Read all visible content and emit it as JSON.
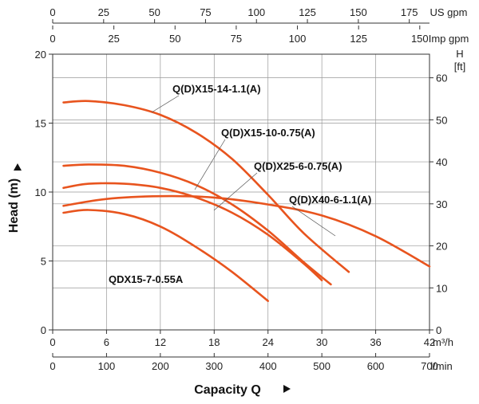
{
  "chart_data": {
    "type": "line",
    "title": "",
    "xlabel": "Capacity Q",
    "ylabel": "Head (m)",
    "xlim": [
      0,
      42
    ],
    "ylim": [
      0,
      20
    ],
    "grid": true,
    "x_unit": "m³/h",
    "x_ticks": [
      0,
      6,
      12,
      18,
      24,
      30,
      36,
      42
    ],
    "y_ticks": [
      0,
      5,
      10,
      15,
      20
    ],
    "secondary_axes": {
      "lpm": {
        "unit": "l/min",
        "ticks": [
          0,
          100,
          200,
          300,
          400,
          500,
          600,
          700
        ]
      },
      "us_gpm": {
        "unit": "US gpm",
        "ticks": [
          0,
          25,
          50,
          75,
          100,
          125,
          150,
          175
        ]
      },
      "imp_gpm": {
        "unit": "Imp gpm",
        "ticks": [
          0,
          25,
          50,
          75,
          100,
          125,
          150
        ]
      },
      "head_ft": {
        "unit_top": "H",
        "unit_bottom": "[ft]",
        "ticks": [
          0,
          10,
          20,
          30,
          40,
          50,
          60
        ]
      }
    },
    "curve_color": "#E8541E",
    "series": [
      {
        "name": "Q(D)X15-14-1.1(A)",
        "x": [
          1.2,
          4,
          8,
          12,
          16,
          20,
          24,
          28,
          33
        ],
        "y": [
          16.5,
          16.6,
          16.3,
          15.6,
          14.3,
          12.4,
          9.8,
          7.0,
          4.2
        ]
      },
      {
        "name": "Q(D)X15-10-0.75(A)",
        "x": [
          1.2,
          4,
          8,
          12,
          16,
          20,
          24,
          28,
          31
        ],
        "y": [
          11.9,
          12.0,
          11.9,
          11.4,
          10.5,
          9.1,
          7.2,
          4.9,
          3.3
        ]
      },
      {
        "name": "Q(D)X25-6-0.75(A)",
        "x": [
          1.2,
          4,
          8,
          12,
          16,
          20,
          24,
          28,
          30
        ],
        "y": [
          10.3,
          10.6,
          10.6,
          10.3,
          9.6,
          8.5,
          6.9,
          4.8,
          3.6
        ]
      },
      {
        "name": "Q(D)X40-6-1.1(A)",
        "x": [
          1.2,
          6,
          12,
          18,
          24,
          30,
          36,
          42
        ],
        "y": [
          9.0,
          9.5,
          9.7,
          9.6,
          9.1,
          8.3,
          6.8,
          4.6
        ]
      },
      {
        "name": "QDX15-7-0.55A",
        "x": [
          1.2,
          4,
          8,
          12,
          16,
          20,
          24
        ],
        "y": [
          8.5,
          8.7,
          8.4,
          7.5,
          6.0,
          4.2,
          2.1
        ]
      }
    ]
  }
}
